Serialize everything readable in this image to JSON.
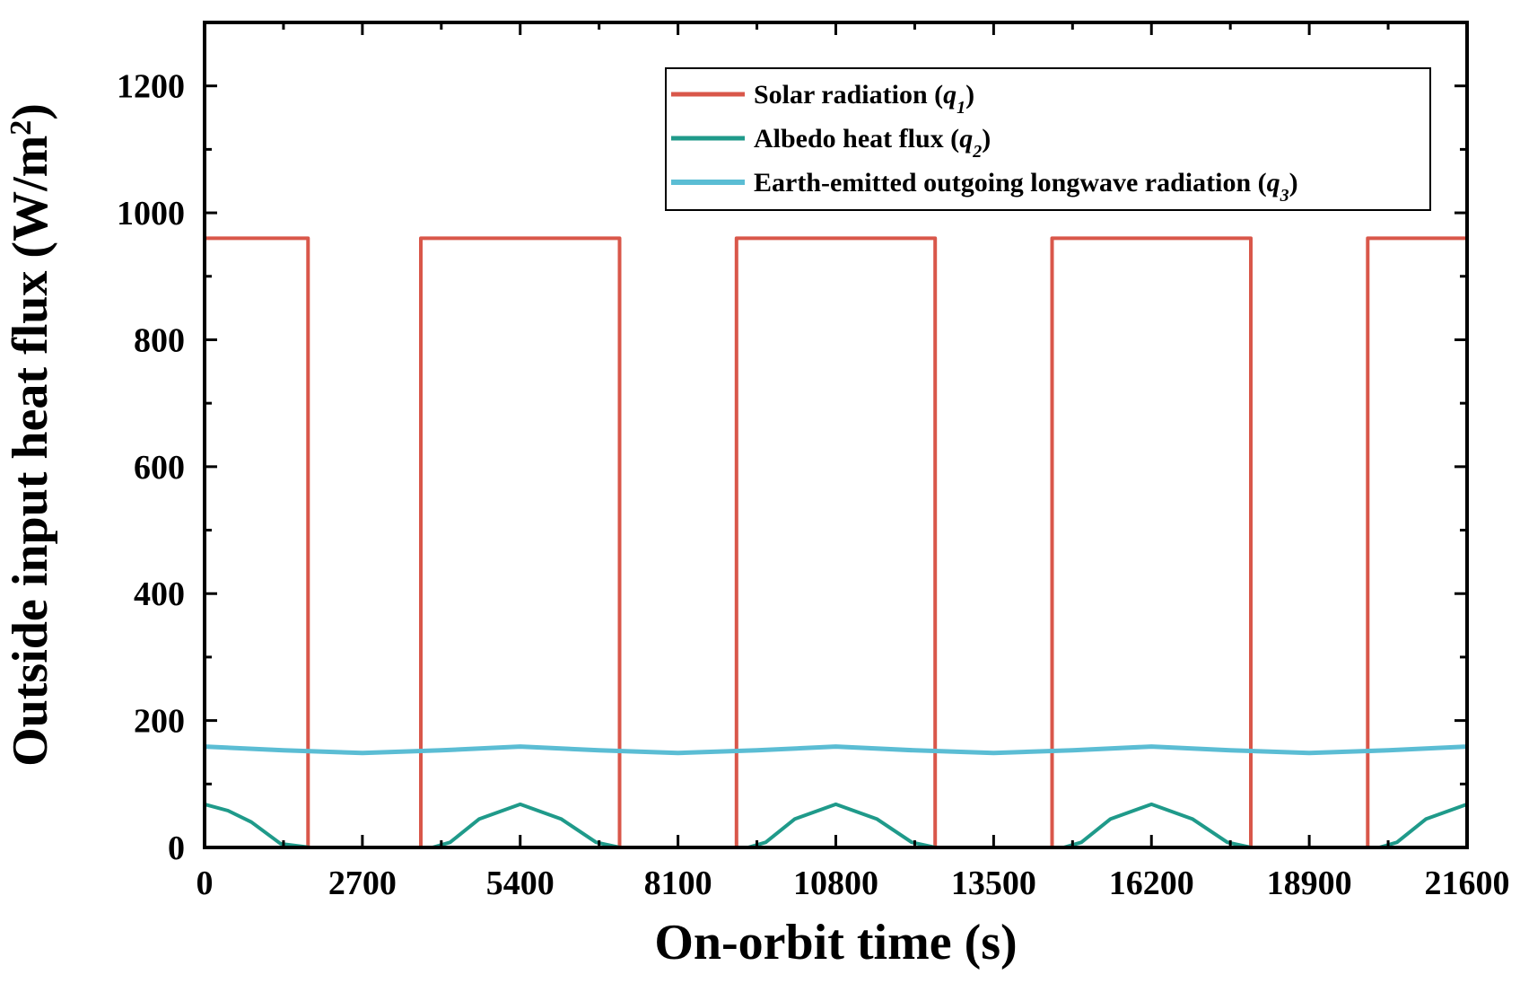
{
  "chart_data": {
    "type": "line",
    "xlabel": "On-orbit time (s)",
    "ylabel": "Outside input heat flux (W/m",
    "ylabel_sup": "2",
    "ylabel_close": ")",
    "xlim": [
      0,
      21600
    ],
    "ylim": [
      0,
      1300
    ],
    "x_ticks": [
      0,
      2700,
      5400,
      8100,
      10800,
      13500,
      16200,
      18900,
      21600
    ],
    "y_ticks": [
      0,
      200,
      400,
      600,
      800,
      1000,
      1200
    ],
    "grid": false,
    "legend_position": "top-right",
    "series": [
      {
        "name": "Solar radiation (q1)",
        "label_text": "Solar radiation (",
        "label_symbol": "q",
        "label_sub": "1",
        "label_close": ")",
        "color": "#d9574a",
        "x": [
          0,
          1770,
          1770,
          3700,
          3700,
          7100,
          7100,
          9100,
          9100,
          12500,
          12500,
          14500,
          14500,
          17900,
          17900,
          19900,
          19900,
          21600
        ],
        "y": [
          960,
          960,
          0,
          0,
          960,
          960,
          0,
          0,
          960,
          960,
          0,
          0,
          960,
          960,
          0,
          0,
          960,
          960
        ]
      },
      {
        "name": "Albedo heat flux (q2)",
        "label_text": "Albedo heat flux (",
        "label_symbol": "q",
        "label_sub": "2",
        "label_close": ")",
        "color": "#1f9a8a",
        "x": [
          0,
          400,
          800,
          1300,
          1800,
          3900,
          4200,
          4700,
          5400,
          6100,
          6700,
          7100,
          9300,
          9600,
          10100,
          10800,
          11500,
          12100,
          12500,
          14700,
          15000,
          15500,
          16200,
          16900,
          17500,
          17900,
          20100,
          20400,
          20900,
          21600
        ],
        "y": [
          68,
          58,
          40,
          6,
          0,
          0,
          8,
          45,
          68,
          45,
          8,
          0,
          0,
          8,
          45,
          68,
          45,
          8,
          0,
          0,
          8,
          45,
          68,
          45,
          8,
          0,
          0,
          8,
          45,
          68
        ]
      },
      {
        "name": "Earth-emitted outgoing longwave radiation (q3)",
        "label_text": "Earth-emitted outgoing longwave radiation (",
        "label_symbol": "q",
        "label_sub": "3",
        "label_close": ")",
        "color": "#5bbdd4",
        "x": [
          0,
          1350,
          2700,
          4050,
          5400,
          6750,
          8100,
          9450,
          10800,
          12150,
          13500,
          14850,
          16200,
          17550,
          18900,
          20250,
          21600
        ],
        "y": [
          159,
          153,
          149,
          153,
          159,
          153,
          149,
          153,
          159,
          153,
          149,
          153,
          159,
          153,
          149,
          153,
          159
        ]
      }
    ]
  }
}
